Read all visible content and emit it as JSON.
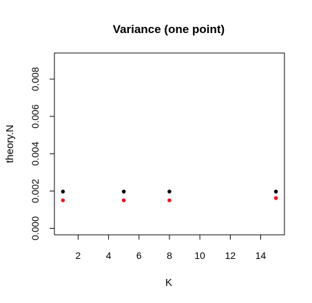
{
  "chart_data": {
    "type": "scatter",
    "title": "Variance (one point)",
    "xlabel": "K",
    "ylabel": "theory.N",
    "xlim": [
      0.44,
      15.56
    ],
    "ylim": [
      -0.00035,
      0.0094
    ],
    "xticks": [
      2,
      4,
      6,
      8,
      10,
      12,
      14
    ],
    "xtick_labels": [
      "2",
      "4",
      "6",
      "8",
      "10",
      "12",
      "14"
    ],
    "yticks": [
      0.0,
      0.002,
      0.004,
      0.006,
      0.008
    ],
    "ytick_labels": [
      "0.000",
      "0.002",
      "0.004",
      "0.006",
      "0.008"
    ],
    "grid": false,
    "series": [
      {
        "color": "#000000",
        "x": [
          1,
          5,
          8,
          15
        ],
        "y": [
          0.00197,
          0.00197,
          0.00197,
          0.00197
        ]
      },
      {
        "color": "#e8141b",
        "x": [
          1,
          5,
          8,
          15
        ],
        "y": [
          0.0015,
          0.0015,
          0.0015,
          0.00162
        ]
      }
    ]
  }
}
